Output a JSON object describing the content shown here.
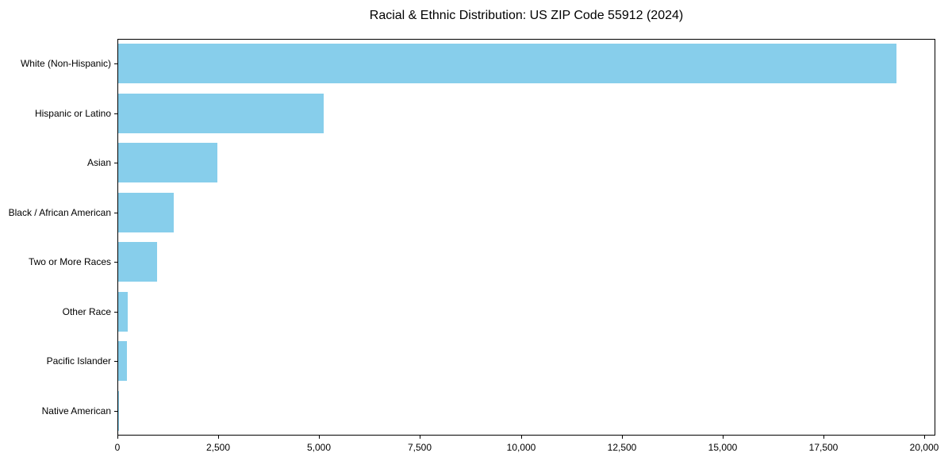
{
  "chart_data": {
    "type": "bar",
    "orientation": "horizontal",
    "title": "Racial & Ethnic Distribution: US ZIP Code 55912 (2024)",
    "categories": [
      "White (Non-Hispanic)",
      "Hispanic or Latino",
      "Asian",
      "Black / African American",
      "Two or More Races",
      "Other Race",
      "Pacific Islander",
      "Native American"
    ],
    "values": [
      19300,
      5100,
      2450,
      1370,
      960,
      240,
      220,
      20
    ],
    "xlabel": "",
    "ylabel": "",
    "xlim": [
      0,
      20275
    ],
    "x_ticks": [
      0,
      2500,
      5000,
      7500,
      10000,
      12500,
      15000,
      17500,
      20000
    ],
    "x_tick_labels": [
      "0",
      "2,500",
      "5,000",
      "7,500",
      "10,000",
      "12,500",
      "15,000",
      "17,500",
      "20,000"
    ],
    "bar_color": "#87CEEB",
    "axis_color": "#000000",
    "background_color": "#ffffff",
    "grid": false,
    "legend_position": "none"
  }
}
